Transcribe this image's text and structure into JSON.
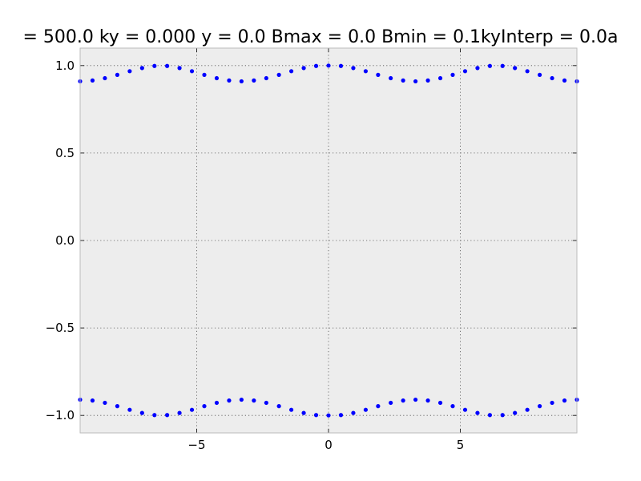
{
  "chart_data": {
    "type": "scatter",
    "title": "= 500.0 ky = 0.000 y = 0.0 Bmax = 0.0 Bmin = 0.1kyInterp = 0.0a",
    "xlabel": "",
    "ylabel": "",
    "xlim": [
      -9.42,
      9.42
    ],
    "ylim": [
      -1.1,
      1.1
    ],
    "grid": true,
    "colors": {
      "background": "#ededed",
      "marker": "#0000ff",
      "frame": "#bbbbbb"
    },
    "x_ticks": [
      {
        "value": -5,
        "label": "−5"
      },
      {
        "value": 0,
        "label": "0"
      },
      {
        "value": 5,
        "label": "5"
      }
    ],
    "y_ticks": [
      {
        "value": 1.0,
        "label": "1.0"
      },
      {
        "value": 0.5,
        "label": "0.5"
      },
      {
        "value": 0.0,
        "label": "0.0"
      },
      {
        "value": -0.5,
        "label": "−0.5"
      },
      {
        "value": -1.0,
        "label": "−1.0"
      }
    ],
    "series": [
      {
        "x": [
          -9.42,
          -8.95,
          -8.48,
          -8.01,
          -7.54,
          -7.07,
          -6.6,
          -6.12,
          -5.65,
          -5.18,
          -4.71,
          -4.24,
          -3.77,
          -3.3,
          -2.83,
          -2.36,
          -1.88,
          -1.41,
          -0.94,
          -0.47,
          0.0,
          0.47,
          0.94,
          1.41,
          1.88,
          2.36,
          2.83,
          3.3,
          3.77,
          4.24,
          4.71,
          5.18,
          5.65,
          6.12,
          6.6,
          7.07,
          7.54,
          8.01,
          8.48,
          8.95,
          9.42
        ],
        "y": [
          0.91,
          0.915,
          0.928,
          0.947,
          0.968,
          0.986,
          0.998,
          0.998,
          0.986,
          0.968,
          0.947,
          0.928,
          0.915,
          0.91,
          0.915,
          0.928,
          0.947,
          0.968,
          0.986,
          0.998,
          1.0,
          0.998,
          0.986,
          0.968,
          0.947,
          0.928,
          0.915,
          0.91,
          0.915,
          0.928,
          0.947,
          0.968,
          0.986,
          0.998,
          0.998,
          0.986,
          0.968,
          0.947,
          0.928,
          0.915,
          0.91
        ]
      },
      {
        "x": [
          -9.42,
          -8.95,
          -8.48,
          -8.01,
          -7.54,
          -7.07,
          -6.6,
          -6.12,
          -5.65,
          -5.18,
          -4.71,
          -4.24,
          -3.77,
          -3.3,
          -2.83,
          -2.36,
          -1.88,
          -1.41,
          -0.94,
          -0.47,
          0.0,
          0.47,
          0.94,
          1.41,
          1.88,
          2.36,
          2.83,
          3.3,
          3.77,
          4.24,
          4.71,
          5.18,
          5.65,
          6.12,
          6.6,
          7.07,
          7.54,
          8.01,
          8.48,
          8.95,
          9.42
        ],
        "y": [
          -0.91,
          -0.915,
          -0.928,
          -0.947,
          -0.968,
          -0.986,
          -0.998,
          -0.998,
          -0.986,
          -0.968,
          -0.947,
          -0.928,
          -0.915,
          -0.91,
          -0.915,
          -0.928,
          -0.947,
          -0.968,
          -0.986,
          -0.998,
          -1.0,
          -0.998,
          -0.986,
          -0.968,
          -0.947,
          -0.928,
          -0.915,
          -0.91,
          -0.915,
          -0.928,
          -0.947,
          -0.968,
          -0.986,
          -0.998,
          -0.998,
          -0.986,
          -0.968,
          -0.947,
          -0.928,
          -0.915,
          -0.91
        ]
      }
    ]
  }
}
